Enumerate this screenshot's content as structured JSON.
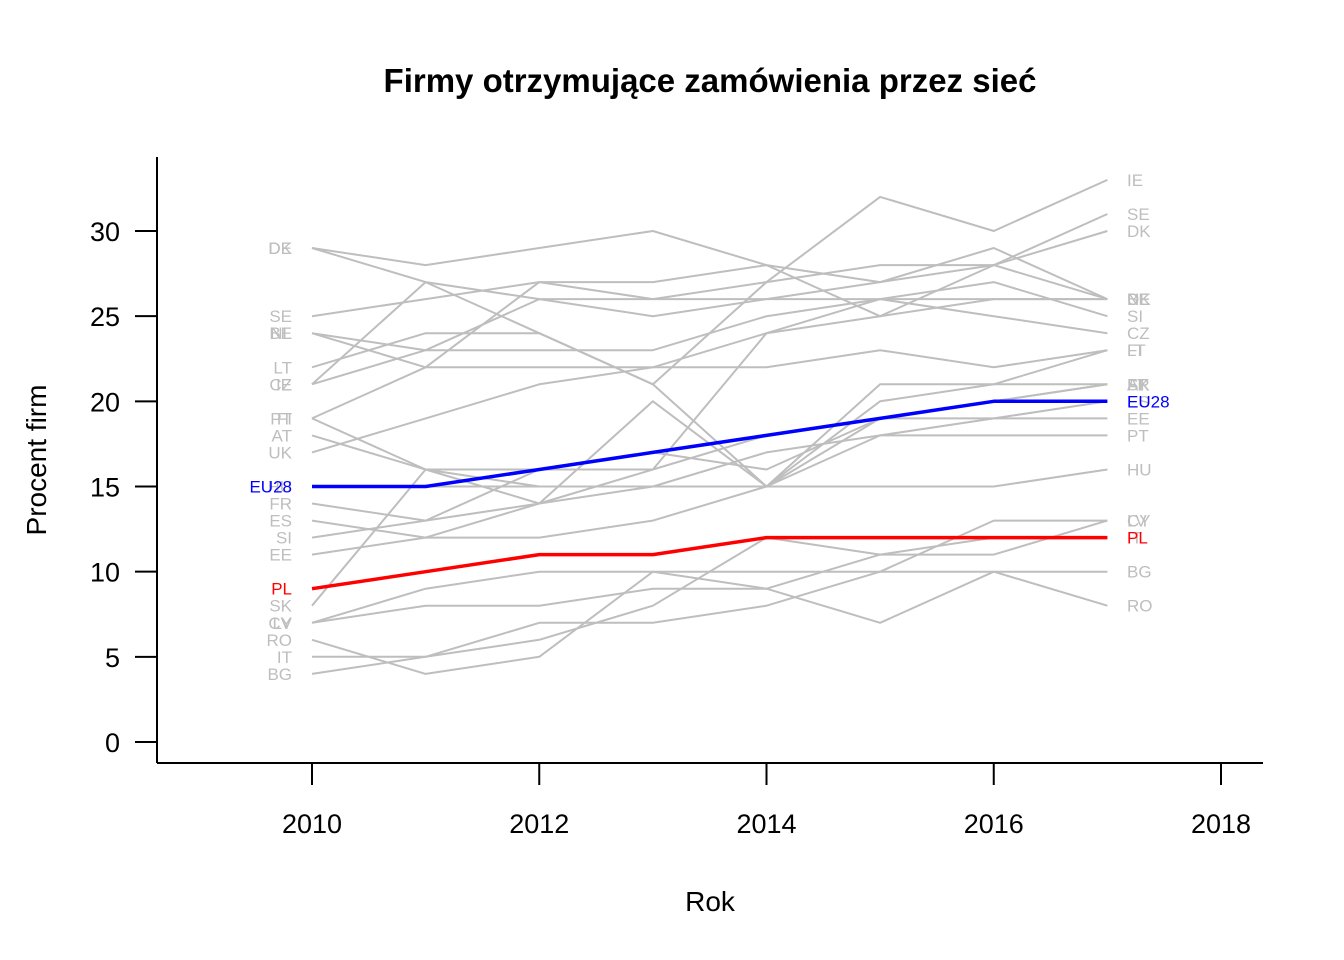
{
  "chart_data": {
    "type": "line",
    "title": "Firmy otrzymujące zamówienia przez sieć",
    "xlabel": "Rok",
    "ylabel": "Procent firm",
    "xlim": [
      2009,
      2018
    ],
    "ylim": [
      0,
      33
    ],
    "x_ticks": [
      "2010",
      "2012",
      "2014",
      "2016",
      "2018"
    ],
    "y_ticks": [
      "0",
      "5",
      "10",
      "15",
      "20",
      "25",
      "30"
    ],
    "x": [
      2010,
      2011,
      2012,
      2013,
      2014,
      2015,
      2016,
      2017
    ],
    "colors": {
      "background_series": "#BEBEBE",
      "EU28": "#0000FF",
      "PL": "#FF0000"
    },
    "grid": false,
    "series": [
      {
        "name": "IE",
        "values": [
          21,
          27,
          24,
          21,
          27,
          32,
          30,
          33
        ]
      },
      {
        "name": "SE",
        "values": [
          25,
          26,
          27,
          26,
          27,
          28,
          28,
          31
        ]
      },
      {
        "name": "DK",
        "values": [
          29,
          28,
          29,
          30,
          28,
          27,
          28,
          30
        ]
      },
      {
        "name": "DE",
        "values": [
          29,
          27,
          26,
          26,
          26,
          26,
          26,
          26
        ]
      },
      {
        "name": "NL",
        "values": [
          24,
          23,
          26,
          25,
          26,
          27,
          29,
          26
        ]
      },
      {
        "name": "BE",
        "values": [
          24,
          22,
          27,
          27,
          28,
          25,
          28,
          26
        ]
      },
      {
        "name": "SI",
        "values": [
          12,
          13,
          14,
          16,
          24,
          26,
          27,
          25
        ]
      },
      {
        "name": "CZ",
        "values": [
          21,
          23,
          23,
          23,
          25,
          26,
          25,
          24
        ]
      },
      {
        "name": "FI",
        "values": [
          19,
          22,
          22,
          22,
          22,
          23,
          22,
          23
        ]
      },
      {
        "name": "LT",
        "values": [
          22,
          24,
          24,
          21,
          15,
          20,
          21,
          23
        ]
      },
      {
        "name": "UK",
        "values": [
          17,
          19,
          21,
          22,
          24,
          25,
          26,
          26
        ]
      },
      {
        "name": "AT",
        "values": [
          18,
          16,
          14,
          20,
          15,
          21,
          21,
          21
        ]
      },
      {
        "name": "FR",
        "values": [
          14,
          13,
          16,
          16,
          18,
          19,
          20,
          21
        ]
      },
      {
        "name": "ES",
        "values": [
          13,
          12,
          12,
          13,
          15,
          19,
          19,
          20
        ]
      },
      {
        "name": "EE",
        "values": [
          11,
          12,
          14,
          15,
          17,
          18,
          19,
          19
        ]
      },
      {
        "name": "PT",
        "values": [
          19,
          16,
          15,
          15,
          15,
          18,
          18,
          18
        ]
      },
      {
        "name": "SK",
        "values": [
          8,
          16,
          16,
          17,
          16,
          19,
          20,
          21
        ]
      },
      {
        "name": "HU",
        "values": [
          15,
          15,
          15,
          15,
          15,
          15,
          15,
          16
        ]
      },
      {
        "name": "CY",
        "values": [
          7,
          9,
          10,
          10,
          10,
          10,
          13,
          13
        ]
      },
      {
        "name": "LV",
        "values": [
          7,
          8,
          8,
          9,
          9,
          11,
          11,
          13
        ]
      },
      {
        "name": "BG",
        "values": [
          4,
          5,
          7,
          7,
          8,
          10,
          10,
          10
        ]
      },
      {
        "name": "RO",
        "values": [
          6,
          4,
          5,
          10,
          9,
          7,
          10,
          8
        ]
      },
      {
        "name": "IT",
        "values": [
          5,
          5,
          6,
          8,
          12,
          11,
          12,
          12
        ]
      },
      {
        "name": "EU28",
        "values": [
          15,
          15,
          16,
          17,
          18,
          19,
          20,
          20
        ]
      },
      {
        "name": "PL",
        "values": [
          9,
          10,
          11,
          11,
          12,
          12,
          12,
          12
        ]
      }
    ]
  }
}
